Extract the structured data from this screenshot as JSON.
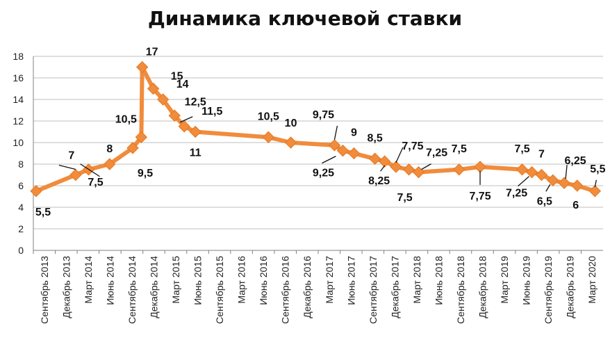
{
  "chart_data": {
    "type": "line",
    "title": "Динамика ключевой ставки",
    "ylim": [
      0,
      18
    ],
    "yticks": [
      0,
      2,
      4,
      6,
      8,
      10,
      12,
      14,
      16,
      18
    ],
    "grid": true,
    "legend": "none",
    "colors": {
      "line": "#F08C3C",
      "grid": "#BFBFBF",
      "axis": "#808080"
    },
    "x_tick_labels": [
      "Сентябрь 2013",
      "Декабрь 2013",
      "Март 2014",
      "Июнь 2014",
      "Сентябрь 2014",
      "Декабрь 2014",
      "Март 2015",
      "Июнь 2015",
      "Сентябрь 2015",
      "Март 2016",
      "Июнь 2016",
      "Сентябрь 2016",
      "Декабрь 2016",
      "Март 2017",
      "Июнь 2017",
      "Сентябрь 2017",
      "Декабрь 2017",
      "Март 2018",
      "Июнь 2018",
      "Сентябрь 2018",
      "Декабрь 2018",
      "Март 2019",
      "Июнь 2019",
      "Сентябрь 2019",
      "Декабрь 2019",
      "Март 2020"
    ],
    "series": [
      {
        "points": [
          {
            "x": "2013-09-13",
            "y": 5.5,
            "label": "5,5"
          },
          {
            "x": "2014-03-03",
            "y": 7,
            "label": "7"
          },
          {
            "x": "2014-04-28",
            "y": 7.5,
            "label": "7,5"
          },
          {
            "x": "2014-07-28",
            "y": 8,
            "label": "8"
          },
          {
            "x": "2014-11-05",
            "y": 9.5,
            "label": "9,5"
          },
          {
            "x": "2014-12-12",
            "y": 10.5,
            "label": "10,5"
          },
          {
            "x": "2014-12-16",
            "y": 17,
            "label": "17"
          },
          {
            "x": "2015-02-02",
            "y": 15,
            "label": "15"
          },
          {
            "x": "2015-03-16",
            "y": 14,
            "label": "14"
          },
          {
            "x": "2015-05-05",
            "y": 12.5,
            "label": "12,5"
          },
          {
            "x": "2015-06-16",
            "y": 11.5,
            "label": "11,5"
          },
          {
            "x": "2015-08-03",
            "y": 11,
            "label": "11"
          },
          {
            "x": "2016-06-14",
            "y": 10.5,
            "label": "10,5"
          },
          {
            "x": "2016-09-19",
            "y": 10,
            "label": "10"
          },
          {
            "x": "2017-03-27",
            "y": 9.75,
            "label": "9,75"
          },
          {
            "x": "2017-05-02",
            "y": 9.25,
            "label": "9,25"
          },
          {
            "x": "2017-06-19",
            "y": 9,
            "label": "9"
          },
          {
            "x": "2017-09-18",
            "y": 8.5,
            "label": "8,5"
          },
          {
            "x": "2017-10-30",
            "y": 8.25,
            "label": "8,25"
          },
          {
            "x": "2017-12-18",
            "y": 7.75,
            "label": "7,75"
          },
          {
            "x": "2018-02-12",
            "y": 7.5,
            "label": "7,5"
          },
          {
            "x": "2018-03-26",
            "y": 7.25,
            "label": "7,25"
          },
          {
            "x": "2018-09-17",
            "y": 7.5,
            "label": "7,5"
          },
          {
            "x": "2018-12-17",
            "y": 7.75,
            "label": "7,75"
          },
          {
            "x": "2019-06-17",
            "y": 7.5,
            "label": "7,5"
          },
          {
            "x": "2019-07-29",
            "y": 7.25,
            "label": "7,25"
          },
          {
            "x": "2019-09-09",
            "y": 7,
            "label": "7"
          },
          {
            "x": "2019-10-28",
            "y": 6.5,
            "label": "6,5"
          },
          {
            "x": "2019-12-16",
            "y": 6.25,
            "label": "6,25"
          },
          {
            "x": "2020-02-10",
            "y": 6,
            "label": "6"
          },
          {
            "x": "2020-04-27",
            "y": 5.5,
            "label": "5,5"
          }
        ]
      }
    ]
  }
}
